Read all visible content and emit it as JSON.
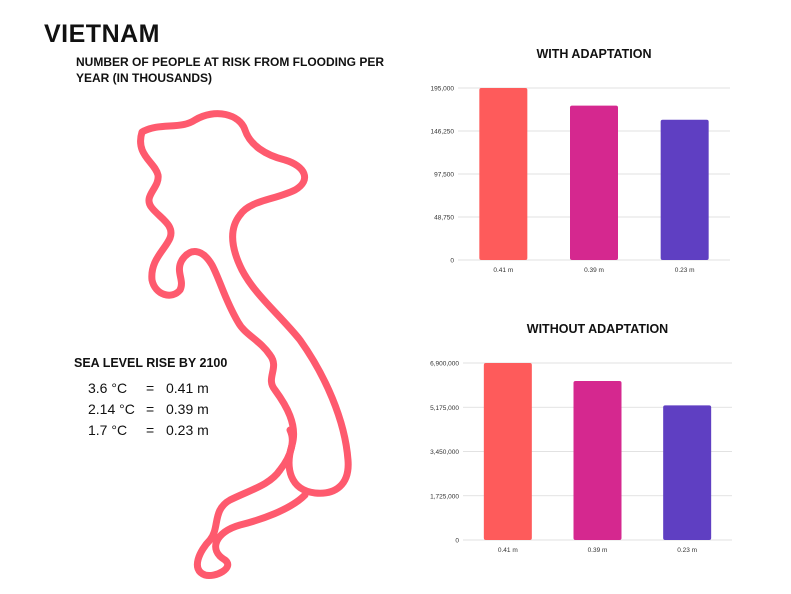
{
  "page": {
    "title": "VIETNAM",
    "subtitle": "NUMBER OF PEOPLE AT RISK FROM FLOODING PER YEAR (IN THOUSANDS)"
  },
  "sea_level": {
    "title": "SEA LEVEL RISE BY 2100",
    "rows": [
      {
        "temp": "3.6 °C",
        "eq": "=",
        "rise": "0.41 m"
      },
      {
        "temp": "2.14 °C",
        "eq": "=",
        "rise": "0.39 m"
      },
      {
        "temp": "1.7 °C",
        "eq": "=",
        "rise": "0.23 m"
      }
    ]
  },
  "colors": {
    "map": "#fe5a6e",
    "bars": [
      "#fe5b5b",
      "#d5288f",
      "#5f3fc2"
    ],
    "grid": "#d9d9d9"
  },
  "chart_data": [
    {
      "type": "bar",
      "title": "WITH ADAPTATION",
      "categories": [
        "0.41 m",
        "0.39 m",
        "0.23 m"
      ],
      "values": [
        195000,
        175000,
        159000
      ],
      "ylim": [
        0,
        195000
      ],
      "yticks": [
        0,
        48750,
        97500,
        146250,
        195000
      ],
      "ytick_labels": [
        "0",
        "48,750",
        "97,500",
        "146,250",
        "195,000"
      ],
      "xlabel": "",
      "ylabel": ""
    },
    {
      "type": "bar",
      "title": "WITHOUT ADAPTATION",
      "categories": [
        "0.41 m",
        "0.39 m",
        "0.23 m"
      ],
      "values": [
        6900000,
        6200000,
        5250000
      ],
      "ylim": [
        0,
        6900000
      ],
      "yticks": [
        0,
        1725000,
        3450000,
        5175000,
        6900000
      ],
      "ytick_labels": [
        "0",
        "1,725,000",
        "3,450,000",
        "5,175,000",
        "6,900,000"
      ],
      "xlabel": "",
      "ylabel": ""
    }
  ]
}
